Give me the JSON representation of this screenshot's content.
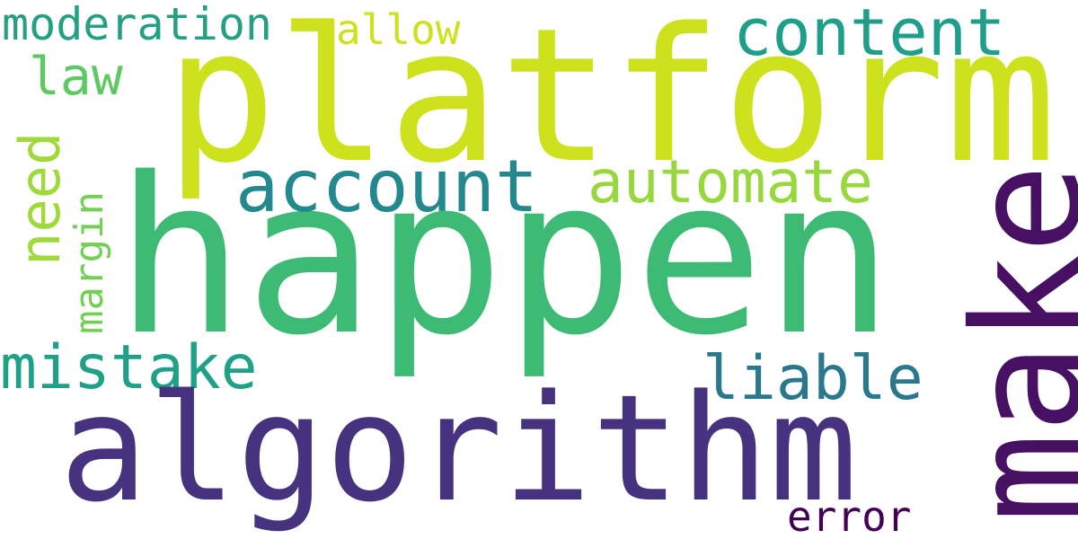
{
  "words": {
    "platform": {
      "text": "platform",
      "color": "#cde11d"
    },
    "happen": {
      "text": "happen",
      "color": "#3dbb74"
    },
    "algorithm": {
      "text": "algorithm",
      "color": "#46327e"
    },
    "make": {
      "text": "make",
      "color": "#471063"
    },
    "account": {
      "text": "account",
      "color": "#23898e"
    },
    "automate": {
      "text": "automate",
      "color": "#98d83e"
    },
    "content": {
      "text": "content",
      "color": "#1f9e89"
    },
    "moderation": {
      "text": "moderation",
      "color": "#25a085"
    },
    "allow": {
      "text": "allow",
      "color": "#cde11d"
    },
    "law": {
      "text": "law",
      "color": "#5ec962"
    },
    "need": {
      "text": "need",
      "color": "#9fda3a"
    },
    "margin": {
      "text": "margin",
      "color": "#73d055"
    },
    "mistake": {
      "text": "mistake",
      "color": "#1fa187"
    },
    "liable": {
      "text": "liable",
      "color": "#2a788e"
    },
    "error": {
      "text": "error",
      "color": "#440154"
    }
  }
}
